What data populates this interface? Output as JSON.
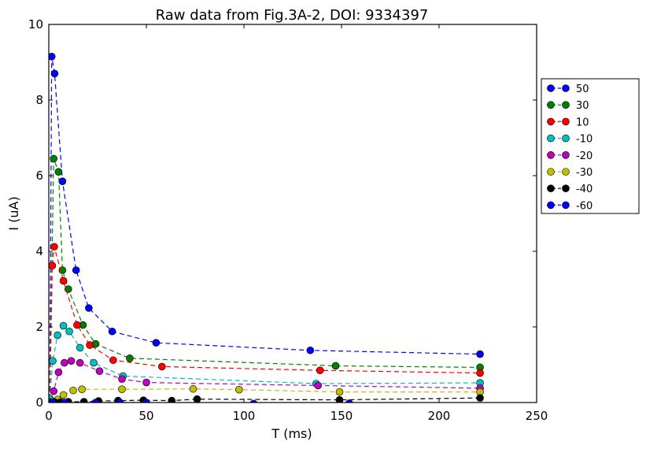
{
  "chart_data": {
    "type": "line",
    "title": "Raw data from Fig.3A-2, DOI: 9334397",
    "xlabel": "T (ms)",
    "ylabel": "I (uA)",
    "xlim": [
      0,
      250
    ],
    "ylim": [
      0,
      10
    ],
    "xticks": [
      "0",
      "50",
      "100",
      "150",
      "200",
      "250"
    ],
    "yticks": [
      "0",
      "2",
      "4",
      "6",
      "8",
      "10"
    ],
    "grid": false,
    "legend_position": "right-outside",
    "series": [
      {
        "name": "50",
        "color": "#0000ff",
        "x": [
          0.5,
          1.5,
          3,
          7,
          14,
          20.5,
          32.5,
          55,
          134,
          221
        ],
        "y": [
          0.1,
          9.15,
          8.7,
          5.85,
          3.5,
          2.5,
          1.88,
          1.58,
          1.38,
          1.28
        ]
      },
      {
        "name": "30",
        "color": "#008000",
        "x": [
          0.5,
          2.5,
          5,
          7,
          10,
          17.5,
          24,
          41.5,
          147,
          221
        ],
        "y": [
          0.1,
          6.45,
          6.1,
          3.5,
          3.0,
          2.05,
          1.55,
          1.17,
          0.97,
          0.93
        ]
      },
      {
        "name": "10",
        "color": "#ff0000",
        "x": [
          0.5,
          1.8,
          2.8,
          7.5,
          14.5,
          21,
          33,
          58,
          139,
          221
        ],
        "y": [
          0.1,
          3.62,
          4.12,
          3.22,
          2.05,
          1.52,
          1.12,
          0.95,
          0.85,
          0.78
        ]
      },
      {
        "name": "-10",
        "color": "#00bfbf",
        "x": [
          0.5,
          2,
          4.5,
          7.5,
          10.5,
          16,
          23,
          38,
          137,
          221
        ],
        "y": [
          0.1,
          1.1,
          1.78,
          2.03,
          1.88,
          1.45,
          1.05,
          0.7,
          0.5,
          0.52
        ]
      },
      {
        "name": "-20",
        "color": "#bf00bf",
        "x": [
          0.5,
          2.5,
          5,
          8,
          11.5,
          16,
          26,
          37.5,
          50,
          138,
          221
        ],
        "y": [
          0.0,
          0.3,
          0.8,
          1.05,
          1.1,
          1.05,
          0.83,
          0.62,
          0.53,
          0.45,
          0.38
        ]
      },
      {
        "name": "-30",
        "color": "#bfbf00",
        "x": [
          0.5,
          2,
          4.5,
          7.5,
          12.5,
          17,
          37.5,
          74,
          97.5,
          149,
          221
        ],
        "y": [
          0.0,
          0.03,
          0.08,
          0.2,
          0.32,
          0.35,
          0.35,
          0.36,
          0.34,
          0.28,
          0.28
        ]
      },
      {
        "name": "-40",
        "color": "#000000",
        "x": [
          1,
          3,
          6,
          10,
          18,
          25.5,
          35.5,
          48.5,
          63,
          76,
          149,
          221
        ],
        "y": [
          0.0,
          0.01,
          0.01,
          0.02,
          0.02,
          0.04,
          0.05,
          0.06,
          0.05,
          0.09,
          0.07,
          0.12
        ]
      },
      {
        "name": "-60",
        "color": "#0000ff",
        "x": [
          2,
          8,
          24,
          36.5,
          50,
          105,
          154
        ],
        "y": [
          0.0,
          0.0,
          0.0,
          0.0,
          0.0,
          -0.03,
          -0.02
        ]
      }
    ]
  }
}
